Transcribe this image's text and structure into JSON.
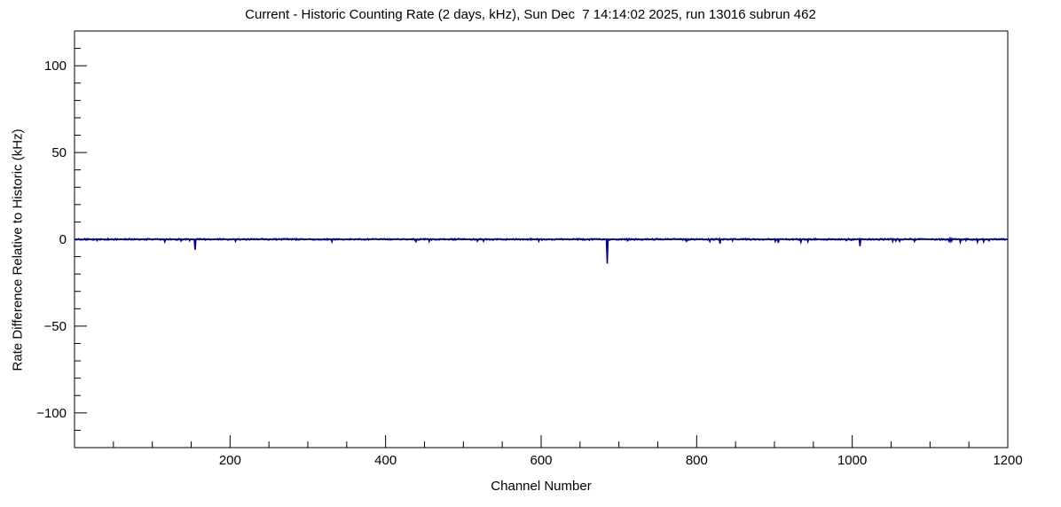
{
  "chart_data": {
    "type": "line",
    "title": "Current - Historic Counting Rate (2 days, kHz), Sun Dec  7 14:14:02 2025, run 13016 subrun 462",
    "xlabel": "Channel Number",
    "ylabel": "Rate Difference Relative to Historic (kHz)",
    "xlim": [
      0,
      1200
    ],
    "ylim": [
      -120,
      120
    ],
    "x_major_ticks": [
      200,
      400,
      600,
      800,
      1000,
      1200
    ],
    "x_minor_step": 50,
    "y_major_ticks": [
      -100,
      -50,
      0,
      50,
      100
    ],
    "y_minor_step": 10,
    "grid": false,
    "legend": false,
    "baseline": 0,
    "noise_amplitude": 0.8,
    "line_color": "#00009c",
    "zero_line_color": "#000000",
    "series_name": "rate-difference-vs-channel",
    "series_description": "Rate difference flat near 0 kHz across channels 1-1200 with small negative spikes",
    "spikes": [
      {
        "channel": 155,
        "value": -6
      },
      {
        "channel": 685,
        "value": -14
      },
      {
        "channel": 830,
        "value": -2.5
      },
      {
        "channel": 905,
        "value": -2
      },
      {
        "channel": 1010,
        "value": -4
      }
    ]
  }
}
